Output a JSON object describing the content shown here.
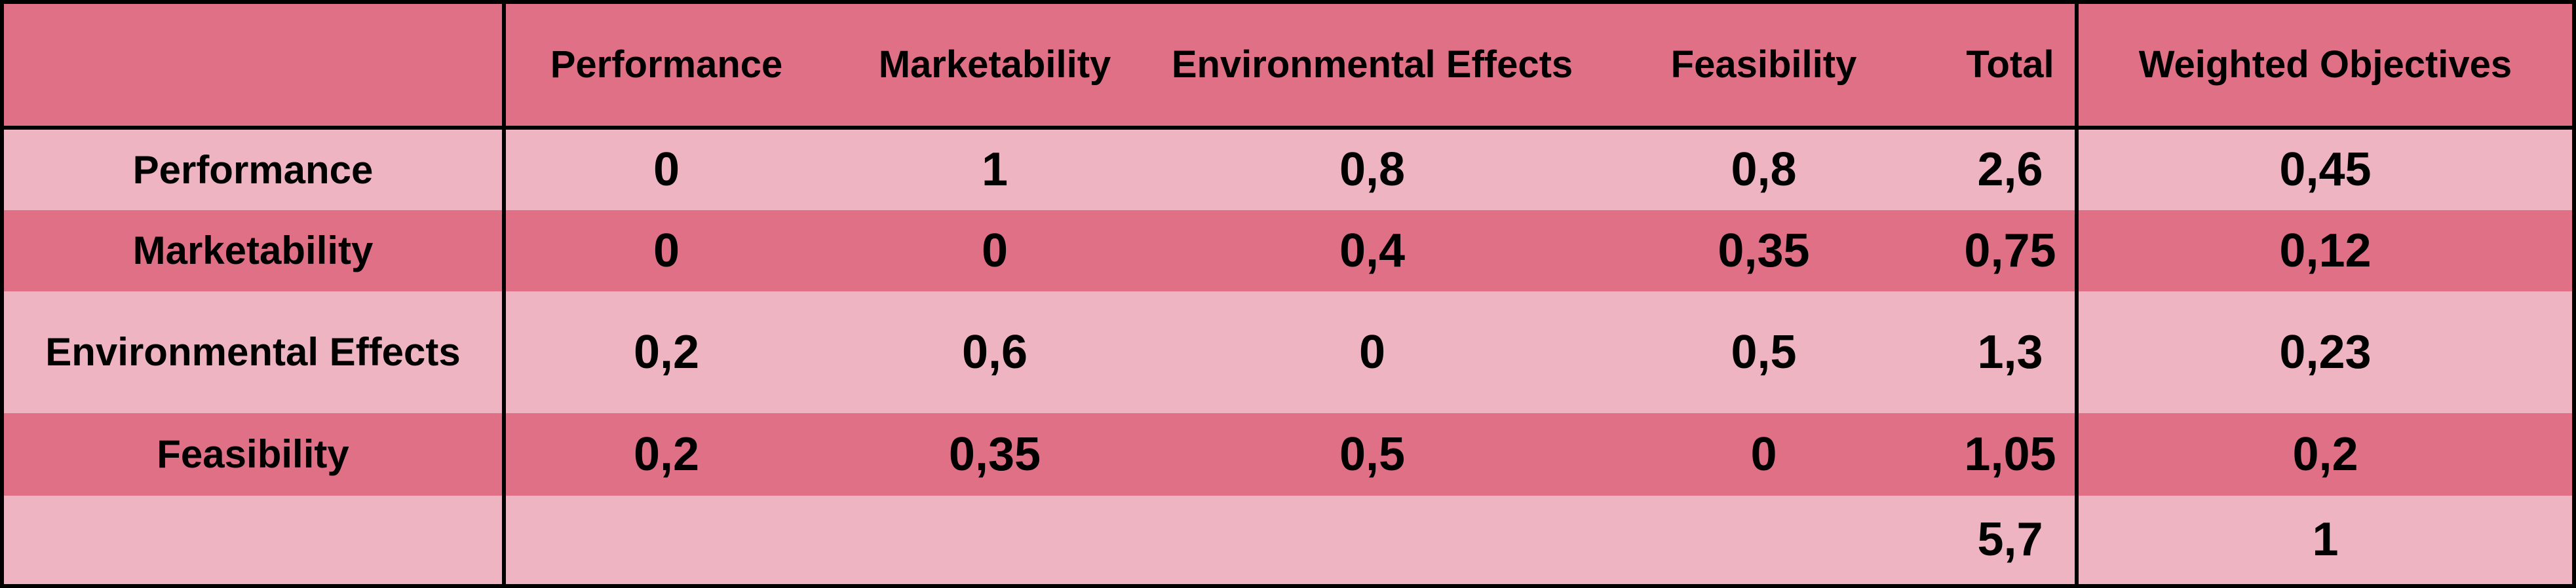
{
  "colors": {
    "row_dark": "#e07085",
    "row_light": "#efb4c1",
    "border": "#000000"
  },
  "header": {
    "corner": "",
    "columns": [
      "Performance",
      "Marketability",
      "Environmental Effects",
      "Feasibility",
      "Total"
    ],
    "weighted": "Weighted Objectives"
  },
  "rows": [
    {
      "label": "Performance",
      "values": [
        "0",
        "1",
        "0,8",
        "0,8",
        "2,6"
      ],
      "weighted": "0,45"
    },
    {
      "label": "Marketability",
      "values": [
        "0",
        "0",
        "0,4",
        "0,35",
        "0,75"
      ],
      "weighted": "0,12"
    },
    {
      "label": "Environmental Effects",
      "values": [
        "0,2",
        "0,6",
        "0",
        "0,5",
        "1,3"
      ],
      "weighted": "0,23"
    },
    {
      "label": "Feasibility",
      "values": [
        "0,2",
        "0,35",
        "0,5",
        "0",
        "1,05"
      ],
      "weighted": "0,2"
    }
  ],
  "totals": {
    "label": "",
    "values": [
      "",
      "",
      "",
      "",
      "5,7"
    ],
    "weighted": "1"
  }
}
